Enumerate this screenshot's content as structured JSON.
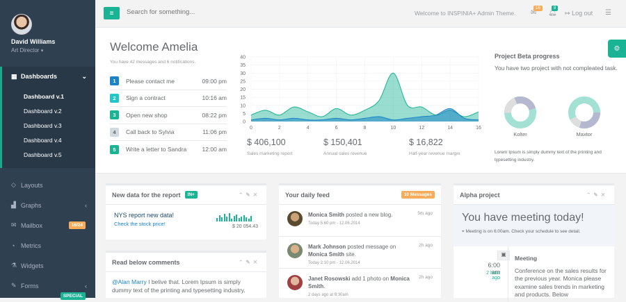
{
  "profile": {
    "name": "David Williams",
    "role": "Art Director"
  },
  "nav": [
    {
      "label": "Dashboards",
      "icon": "grid-icon",
      "active": true
    },
    {
      "label": "Layouts",
      "icon": "diamond-icon"
    },
    {
      "label": "Graphs",
      "icon": "bar-chart-icon"
    },
    {
      "label": "Mailbox",
      "icon": "envelope-icon",
      "badge": "16/24"
    },
    {
      "label": "Metrics",
      "icon": "pie-chart-icon"
    },
    {
      "label": "Widgets",
      "icon": "flask-icon"
    },
    {
      "label": "Forms",
      "icon": "edit-icon"
    }
  ],
  "dashboards_sub": [
    "Dashboard v.1",
    "Dashboard v.2",
    "Dashboard v.3",
    "Dashboard v.4",
    "Dashboard v.5"
  ],
  "nav_extra_badge": "SPECIAL",
  "topbar": {
    "search_placeholder": "Search for something...",
    "welcome": "Welcome to INSPINIA+ Admin Theme.",
    "mail_count": "16",
    "bell_count": "8",
    "logout": "Log out"
  },
  "header": {
    "title": "Welcome Amelia",
    "subtitle": "You have 42 messages and 6 notifications.",
    "todos": [
      {
        "num": "1",
        "text": "Please contact me",
        "time": "09:00 pm",
        "color": "#1c84c6"
      },
      {
        "num": "2",
        "text": "Sign a contract",
        "time": "10:16 am",
        "color": "#23c6c8"
      },
      {
        "num": "3",
        "text": "Open new shop",
        "time": "08:22 pm",
        "color": "#1ab394"
      },
      {
        "num": "4",
        "text": "Call back to Sylvia",
        "time": "11:06 pm",
        "color": "#d1dade"
      },
      {
        "num": "5",
        "text": "Write a letter to Sandra",
        "time": "12:00 am",
        "color": "#1ab394"
      }
    ],
    "stats": [
      {
        "value": "$ 406,100",
        "label": "Sales marketing report"
      },
      {
        "value": "$ 150,401",
        "label": "Annual sales revenue"
      },
      {
        "value": "$ 16,822",
        "label": "Half-year revenue margin"
      }
    ],
    "project": {
      "title": "Project Beta progress",
      "desc": "You have two project with not compleated task.",
      "donuts": [
        "Kolter",
        "Maxtor"
      ],
      "footer": "Lorem Ipsum is simply dummy text of the printing and typesetting industry."
    }
  },
  "chart_data": {
    "type": "area",
    "x": [
      0,
      1,
      2,
      3,
      4,
      5,
      6,
      7,
      8,
      9,
      10,
      11,
      12,
      13,
      14,
      15,
      16
    ],
    "xticks": [
      "0",
      "2",
      "4",
      "6",
      "8",
      "10",
      "12",
      "14",
      "16"
    ],
    "yticks": [
      "0",
      "5",
      "10",
      "15",
      "20",
      "25",
      "30",
      "35",
      "40"
    ],
    "ylim": [
      0,
      40
    ],
    "xlim": [
      0,
      16
    ],
    "series": [
      {
        "values": [
          4,
          7,
          4,
          9,
          6,
          3,
          8,
          4,
          7,
          13,
          30,
          10,
          9,
          4,
          7,
          3,
          6
        ],
        "color": "#1ab394"
      },
      {
        "values": [
          1,
          2,
          1,
          2,
          1,
          1,
          2,
          1,
          2,
          3,
          1,
          2,
          3,
          4,
          8,
          2,
          1
        ],
        "color": "#1c84c6"
      }
    ]
  },
  "panels": {
    "report": {
      "title": "New data for the report",
      "label": "IN+",
      "heading": "NYS report new data!",
      "link": "Check the stock price!",
      "amount": "$ 20 054.43"
    },
    "comments": {
      "title": "Read below comments",
      "user": "@Alan Marry",
      "text": " I belive that. Lorem Ipsum is simply dummy text of the printing and typesetting industry."
    },
    "feed": {
      "title": "Your daily feed",
      "label": "10 Messages",
      "items": [
        {
          "name": "Monica Smith",
          "action": " posted a new blog.",
          "extra": "",
          "time": "Today 5:60 pm - 12.06.2014",
          "ago": "5m ago"
        },
        {
          "name": "Mark Johnson",
          "action": " posted message on ",
          "extra": "Monica Smith",
          "suffix": " site.",
          "time": "Today 2:10 pm - 12.06.2014",
          "ago": "2h ago"
        },
        {
          "name": "Janet Rosowski",
          "action": " add 1 photo on ",
          "extra": "Monica Smith",
          "suffix": ".",
          "time": "2 days ago at 8:30am",
          "ago": "2h ago"
        }
      ]
    },
    "alpha": {
      "title": "Alpha project",
      "meeting": "You have meeting today!",
      "meeting_sub": "Meeting is on 6:00am. Check your schedule to see detail.",
      "time": "6:00 am",
      "ago": "2 hour ago",
      "event_title": "Meeting",
      "event_text": "Conference on the sales results for the previous year. Monica please examine sales trends in marketing and products. Below"
    }
  },
  "colors": {
    "primary": "#1ab394",
    "sidebar": "#2f4050",
    "warning": "#f8ac59"
  }
}
